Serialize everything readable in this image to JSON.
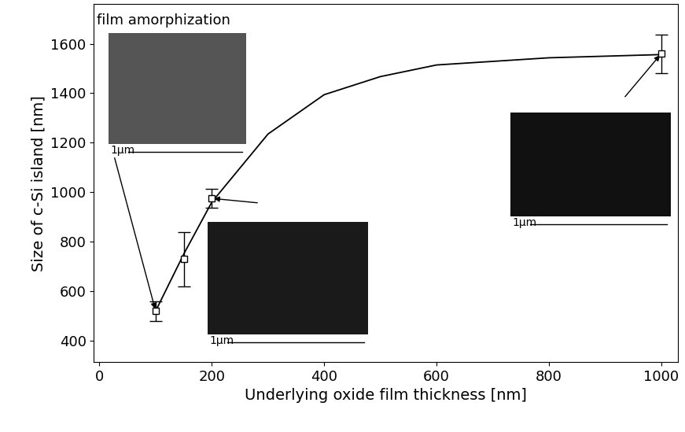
{
  "chart_data": {
    "type": "scatter",
    "x_label": "Underlying oxide film thickness [nm]",
    "y_label": "Size of c-Si island [nm]",
    "x": [
      100,
      150,
      200,
      1000
    ],
    "values": [
      520,
      730,
      975,
      1560
    ],
    "errors": [
      40,
      110,
      38,
      78
    ],
    "color": "#000000",
    "marker": "square",
    "fit": {
      "x": [
        100,
        150,
        200,
        300,
        400,
        500,
        600,
        800,
        1000
      ],
      "values": [
        520,
        750,
        960,
        1235,
        1394,
        1467,
        1514,
        1543,
        1556
      ]
    },
    "annotation": "film amorphization",
    "scale_bar_labels": [
      "1µm",
      "1µm",
      "1µm"
    ],
    "xlim": [
      -10,
      1030
    ],
    "ylim": [
      314,
      1759
    ],
    "xticks": [
      0,
      200,
      400,
      600,
      800,
      1000
    ],
    "yticks": [
      400,
      600,
      800,
      1000,
      1200,
      1400,
      1600
    ],
    "grid": false
  }
}
